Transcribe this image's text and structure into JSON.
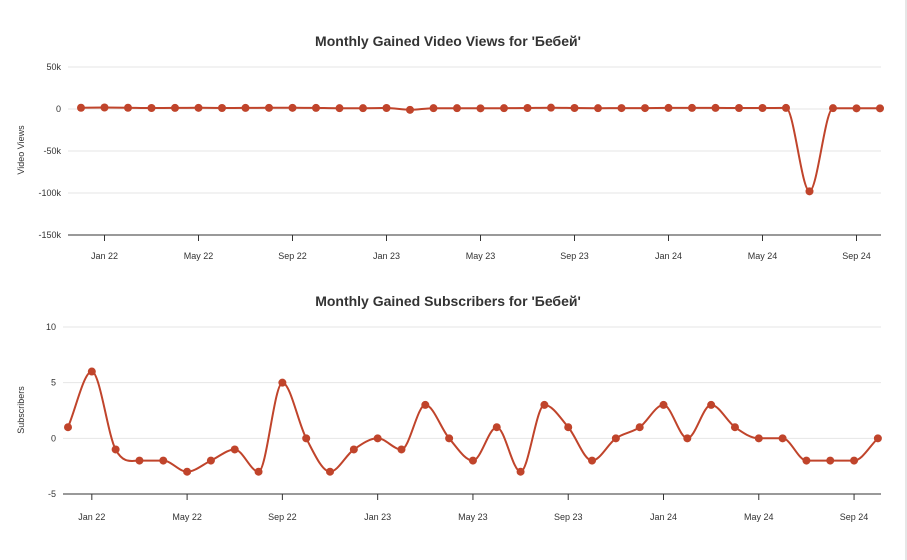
{
  "chart_data": [
    {
      "type": "line",
      "title": "Monthly Gained Video Views for 'Бебей'",
      "ylabel": "Video Views",
      "xlabel": "",
      "ylim": [
        -150000,
        50000
      ],
      "y_ticks": [
        {
          "value": 50000,
          "label": "50k"
        },
        {
          "value": 0,
          "label": "0"
        },
        {
          "value": -50000,
          "label": "-50k"
        },
        {
          "value": -100000,
          "label": "-100k"
        },
        {
          "value": -150000,
          "label": "-150k"
        }
      ],
      "x_ticks": [
        {
          "month": 1,
          "label": "Jan 22"
        },
        {
          "month": 5,
          "label": "May 22"
        },
        {
          "month": 9,
          "label": "Sep 22"
        },
        {
          "month": 13,
          "label": "Jan 23"
        },
        {
          "month": 17,
          "label": "May 23"
        },
        {
          "month": 21,
          "label": "Sep 23"
        },
        {
          "month": 25,
          "label": "Jan 24"
        },
        {
          "month": 29,
          "label": "May 24"
        },
        {
          "month": 33,
          "label": "Sep 24"
        }
      ],
      "series": [
        {
          "name": "",
          "color": "#c0442b",
          "x": [
            0,
            1,
            2,
            3,
            4,
            5,
            6,
            7,
            8,
            9,
            10,
            11,
            12,
            13,
            14,
            15,
            16,
            17,
            18,
            19,
            20,
            21,
            22,
            23,
            24,
            25,
            26,
            27,
            28,
            29,
            30,
            31,
            32,
            33,
            34
          ],
          "values": [
            1500,
            1800,
            1500,
            1200,
            1300,
            1400,
            1200,
            1300,
            1400,
            1400,
            1300,
            1000,
            1000,
            1200,
            -1000,
            1000,
            1000,
            800,
            1000,
            1200,
            1600,
            1200,
            1000,
            1100,
            1100,
            1300,
            1300,
            1300,
            1200,
            1200,
            1300,
            -98000,
            1000,
            800,
            800
          ]
        }
      ],
      "grid": true
    },
    {
      "type": "line",
      "title": "Monthly Gained Subscribers for 'Бебей'",
      "ylabel": "Subscribers",
      "xlabel": "",
      "ylim": [
        -5,
        10
      ],
      "y_ticks": [
        {
          "value": 10,
          "label": "10"
        },
        {
          "value": 5,
          "label": "5"
        },
        {
          "value": 0,
          "label": "0"
        },
        {
          "value": -5,
          "label": "-5"
        }
      ],
      "x_ticks": [
        {
          "month": 1,
          "label": "Jan 22"
        },
        {
          "month": 5,
          "label": "May 22"
        },
        {
          "month": 9,
          "label": "Sep 22"
        },
        {
          "month": 13,
          "label": "Jan 23"
        },
        {
          "month": 17,
          "label": "May 23"
        },
        {
          "month": 21,
          "label": "Sep 23"
        },
        {
          "month": 25,
          "label": "Jan 24"
        },
        {
          "month": 29,
          "label": "May 24"
        },
        {
          "month": 33,
          "label": "Sep 24"
        }
      ],
      "series": [
        {
          "name": "",
          "color": "#c0442b",
          "x": [
            0,
            1,
            2,
            3,
            4,
            5,
            6,
            7,
            8,
            9,
            10,
            11,
            12,
            13,
            14,
            15,
            16,
            17,
            18,
            19,
            20,
            21,
            22,
            23,
            24,
            25,
            26,
            27,
            28,
            29,
            30,
            31,
            32,
            33,
            34
          ],
          "values": [
            1,
            6,
            -1,
            -2,
            -2,
            -3,
            -2,
            -1,
            -3,
            5,
            0,
            -3,
            -1,
            0,
            -1,
            3,
            0,
            -2,
            1,
            -3,
            3,
            1,
            -2,
            0,
            1,
            3,
            0,
            3,
            1,
            0,
            0,
            -2,
            -2,
            -2,
            0
          ]
        }
      ],
      "grid": true
    }
  ]
}
